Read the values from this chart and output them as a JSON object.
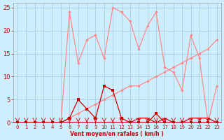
{
  "xlabel": "Vent moyen/en rafales ( km/h )",
  "bg_color": "#cceeff",
  "grid_color": "#aaccdd",
  "xlim": [
    -0.5,
    23.5
  ],
  "ylim": [
    0,
    26
  ],
  "yticks": [
    0,
    5,
    10,
    15,
    20,
    25
  ],
  "xticks": [
    0,
    1,
    2,
    3,
    4,
    5,
    6,
    7,
    8,
    9,
    10,
    11,
    12,
    13,
    14,
    15,
    16,
    17,
    18,
    19,
    20,
    21,
    22,
    23
  ],
  "line1_x": [
    0,
    1,
    2,
    3,
    4,
    5,
    6,
    7,
    8,
    9,
    10,
    11,
    12,
    13,
    14,
    15,
    16,
    17,
    18,
    19,
    20,
    21,
    22,
    23
  ],
  "line1_y": [
    0,
    0,
    0,
    0,
    0,
    0,
    24,
    13,
    18,
    19,
    14,
    25,
    24,
    22,
    16,
    21,
    24,
    12,
    11,
    7,
    19,
    14,
    0,
    8
  ],
  "line1_color": "#ff8888",
  "line2_x": [
    0,
    1,
    2,
    3,
    4,
    5,
    6,
    7,
    8,
    9,
    10,
    11,
    12,
    13,
    14,
    15,
    16,
    17,
    18,
    19,
    20,
    21,
    22,
    23
  ],
  "line2_y": [
    0,
    0,
    0,
    0,
    0,
    0,
    1,
    2,
    3,
    4,
    5,
    6,
    7,
    8,
    8,
    9,
    10,
    11,
    12,
    13,
    14,
    15,
    16,
    18
  ],
  "line2_color": "#ff8888",
  "line3_x": [
    0,
    1,
    2,
    3,
    4,
    5,
    6,
    7,
    8,
    9,
    10,
    11,
    12,
    13,
    14,
    15,
    16,
    17,
    18,
    19,
    20,
    21,
    22,
    23
  ],
  "line3_y": [
    0,
    0,
    0,
    0,
    0,
    0,
    1,
    5,
    3,
    1,
    8,
    7,
    1,
    0,
    0,
    0,
    2,
    0,
    0,
    0,
    0,
    0,
    0,
    0
  ],
  "line3_color": "#cc0000",
  "line4_x": [
    0,
    1,
    2,
    3,
    4,
    5,
    6,
    7,
    8,
    9,
    10,
    11,
    12,
    13,
    14,
    15,
    16,
    17,
    18,
    19,
    20,
    21,
    22,
    23
  ],
  "line4_y": [
    0,
    0,
    0,
    0,
    0,
    0,
    0,
    0,
    0,
    0,
    0,
    0,
    0,
    0,
    1,
    1,
    0,
    1,
    0,
    0,
    1,
    1,
    1,
    0
  ],
  "line4_color": "#cc0000",
  "arrow_color": "#cc0000",
  "bottom_line_color": "#cc0000"
}
